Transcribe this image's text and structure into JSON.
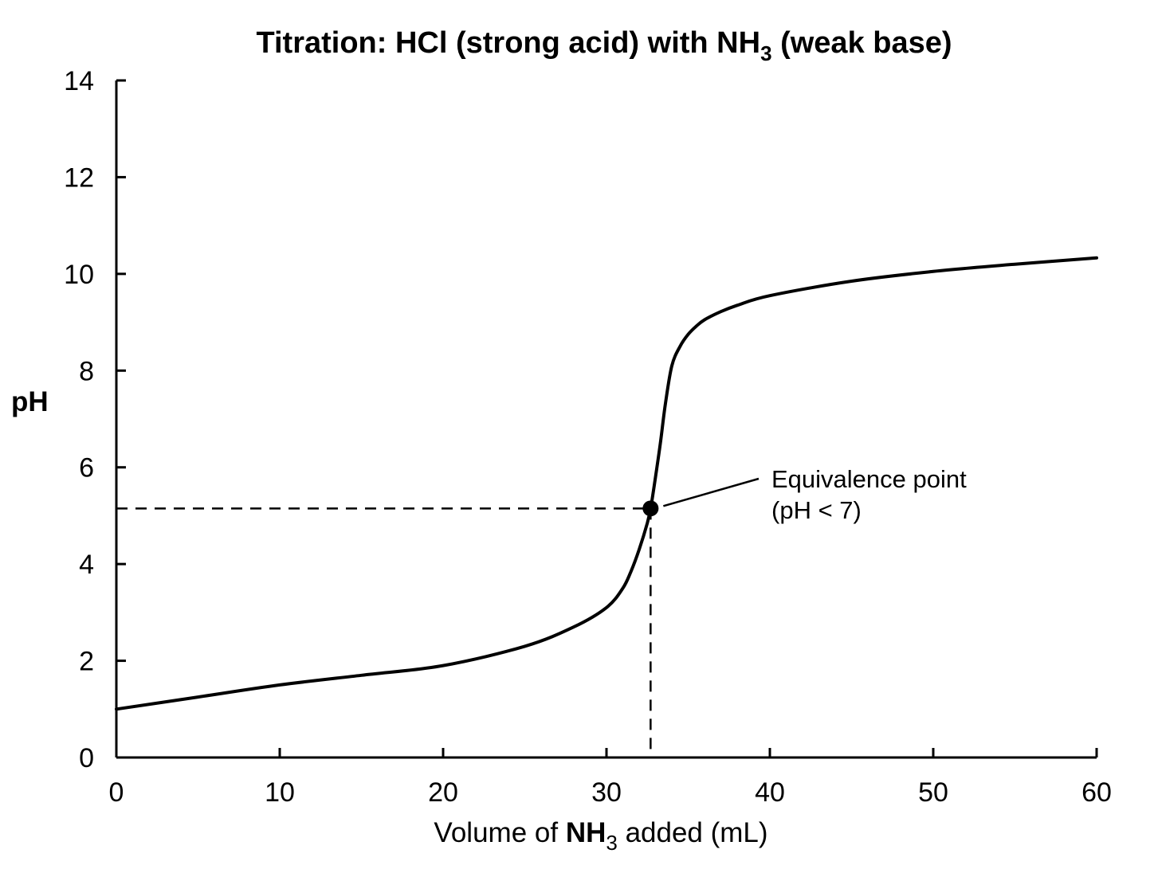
{
  "chart_data": {
    "type": "line",
    "title": "Titration: HCl (strong acid) with NH",
    "title_sub": "3",
    "title_tail": " (weak base)",
    "xlabel": "Volume of ",
    "xlabel_bold": "NH",
    "xlabel_sub": "3",
    "xlabel_tail": " added (mL)",
    "ylabel": "pH",
    "xlim": [
      0,
      60
    ],
    "ylim": [
      0,
      14
    ],
    "xticks": [
      0,
      10,
      20,
      30,
      40,
      50,
      60
    ],
    "yticks": [
      0,
      2,
      4,
      6,
      8,
      10,
      12,
      14
    ],
    "grid": false,
    "series": [
      {
        "x": [
          0,
          5,
          10,
          15,
          20,
          25,
          28,
          30,
          31,
          31.5,
          32,
          32.5,
          32.7,
          33,
          33.3,
          33.6,
          34,
          34.5,
          35,
          35.5,
          36,
          37,
          38,
          40,
          45,
          50,
          55,
          60
        ],
        "y": [
          1.0,
          1.25,
          1.5,
          1.7,
          1.9,
          2.3,
          2.7,
          3.1,
          3.5,
          3.85,
          4.3,
          4.85,
          5.15,
          5.8,
          6.5,
          7.3,
          8.1,
          8.5,
          8.75,
          8.92,
          9.05,
          9.22,
          9.35,
          9.55,
          9.85,
          10.05,
          10.2,
          10.33
        ]
      }
    ],
    "equivalence_point": {
      "x": 32.7,
      "y": 5.15
    },
    "annotation": {
      "line1": "Equivalence point",
      "line2": "(pH < 7)"
    }
  }
}
